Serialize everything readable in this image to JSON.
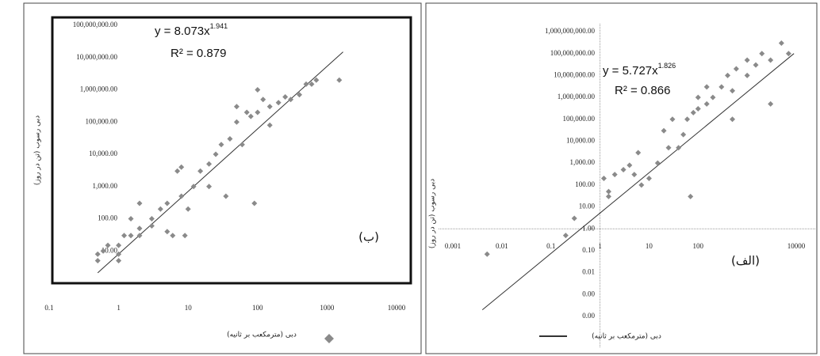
{
  "chart_data": [
    {
      "type": "scatter",
      "panel_label": "(ب)",
      "x_label": "دبی (مترمکعب بر ثانیه)",
      "y_label": "دبی رسوب (تن در روز)",
      "equation_base": "y = 8.073x",
      "equation_exponent": "1.941",
      "r_squared": "R² = 0.879",
      "color": "#8a8a8a",
      "log_x": true,
      "log_y": true,
      "x": [
        0.5,
        0.5,
        0.6,
        0.7,
        1,
        1,
        1,
        1.2,
        1.5,
        1.5,
        2,
        2,
        2,
        3,
        3,
        4,
        5,
        5,
        6,
        7,
        8,
        8,
        9,
        10,
        12,
        15,
        20,
        20,
        25,
        30,
        35,
        40,
        50,
        50,
        60,
        70,
        80,
        90,
        100,
        100,
        120,
        150,
        150,
        200,
        250,
        300,
        400,
        500,
        600,
        700,
        1500
      ],
      "values": [
        5,
        8,
        10,
        15,
        8,
        5,
        15,
        30,
        30,
        100,
        30,
        300,
        50,
        60,
        100,
        200,
        40,
        300,
        30,
        3000,
        4000,
        500,
        30,
        200,
        1000,
        3000,
        5000,
        1000,
        10000,
        20000,
        500,
        30000,
        100000,
        300000,
        20000,
        200000,
        150000,
        300,
        200000,
        1000000,
        500000,
        80000,
        300000,
        400000,
        600000,
        500000,
        700000,
        1500000,
        1500000,
        2000000,
        2000000
      ],
      "trendline": {
        "color": "#333333",
        "x": [
          0.5,
          1700
        ],
        "values": [
          2.1,
          15000000
        ]
      },
      "xlim": [
        0.1,
        10000
      ],
      "ylim": [
        1,
        100000000
      ],
      "xticks": [
        0.1,
        1,
        10,
        100,
        1000,
        10000
      ],
      "yticks": [
        {
          "value": 10,
          "label": "10.00"
        },
        {
          "value": 100,
          "label": "100.00"
        },
        {
          "value": 1000,
          "label": "1,000.00"
        },
        {
          "value": 10000,
          "label": "10,000.00"
        },
        {
          "value": 100000,
          "label": "100,000.00"
        },
        {
          "value": 1000000,
          "label": "1,000,000.00"
        },
        {
          "value": 10000000,
          "label": "10,000,000.00"
        },
        {
          "value": 100000000,
          "label": "100,000,000.00"
        }
      ]
    },
    {
      "type": "scatter",
      "panel_label": "(الف)",
      "x_label": "دبی (مترمکعب بر ثانیه)",
      "y_label": "دبی رسوب (تن در روز)",
      "equation_base": "y = 5.727x",
      "equation_exponent": "1.826",
      "r_squared": "R² = 0.866",
      "color": "#8a8a8a",
      "log_x": true,
      "log_y": true,
      "crosses_at": {
        "x": 1,
        "y": 1
      },
      "x": [
        0.005,
        0.2,
        0.3,
        1.2,
        1.5,
        1.5,
        2,
        3,
        4,
        5,
        6,
        7,
        10,
        15,
        20,
        25,
        30,
        40,
        50,
        60,
        70,
        80,
        100,
        100,
        150,
        150,
        200,
        300,
        400,
        500,
        500,
        600,
        1000,
        1000,
        1500,
        2000,
        3000,
        5000,
        7000,
        3000
      ],
      "values": [
        0.07,
        0.5,
        3,
        200,
        30,
        50,
        300,
        500,
        800,
        300,
        3000,
        100,
        200,
        1000,
        30000,
        5000,
        100000,
        5000,
        20000,
        100000,
        30,
        200000,
        1000000,
        300000,
        3000000,
        500000,
        1000000,
        3000000,
        10000000,
        2000000,
        100000,
        20000000,
        10000000,
        50000000,
        30000000,
        100000000,
        50000000,
        300000000,
        100000000,
        500000
      ],
      "trendline": {
        "color": "#333333",
        "x": [
          0.004,
          9000
        ],
        "values": [
          0.0002,
          100000000
        ]
      },
      "xlim": [
        0.001,
        10000
      ],
      "ylim": [
        0.0001,
        1000000000
      ],
      "xticks": [
        0.001,
        0.01,
        0.1,
        1,
        10,
        100,
        10000
      ],
      "yticks": [
        {
          "value": 0.0001,
          "label": "0.00"
        },
        {
          "value": 0.001,
          "label": "0.00"
        },
        {
          "value": 0.01,
          "label": "0.01"
        },
        {
          "value": 0.1,
          "label": "0.10"
        },
        {
          "value": 1,
          "label": "1.00"
        },
        {
          "value": 10,
          "label": "10.00"
        },
        {
          "value": 100,
          "label": "100.00"
        },
        {
          "value": 1000,
          "label": "1,000.00"
        },
        {
          "value": 10000,
          "label": "10,000.00"
        },
        {
          "value": 100000,
          "label": "100,000.00"
        },
        {
          "value": 1000000,
          "label": "1,000,000.00"
        },
        {
          "value": 10000000,
          "label": "10,000,000.00"
        },
        {
          "value": 100000000,
          "label": "100,000,000.00"
        },
        {
          "value": 1000000000,
          "label": "1,000,000,000.00"
        }
      ]
    }
  ]
}
